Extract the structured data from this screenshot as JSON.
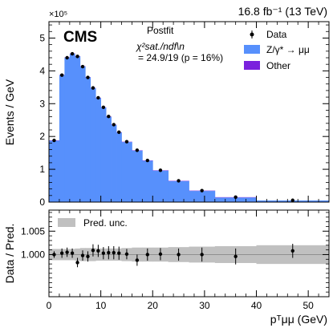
{
  "header": {
    "lumi_label": "16.8 fb⁻¹ (13 TeV)",
    "experiment": "CMS",
    "multiplier": "×10⁵"
  },
  "fit_info": {
    "line1": "Postfit",
    "line2": "χ²sat./ndf\\n",
    "line3": "= 24.9/19 (p = 16%)"
  },
  "legend": {
    "data": "Data",
    "signal": "Z/γ* → μμ",
    "other": "Other",
    "unc": "Pred. unc."
  },
  "colors": {
    "signal": "#5790fc",
    "other": "#7a21dd",
    "unc_band": "#c0c0c0",
    "data": "#000000"
  },
  "axes": {
    "top_ylabel": "Events / GeV",
    "bottom_ylabel": "Data / Pred.",
    "xlabel": "pᵀμμ (GeV)"
  },
  "chart_data": [
    {
      "type": "bar",
      "panel": "top",
      "xlim": [
        0,
        54
      ],
      "ylim": [
        0,
        5.5
      ],
      "y_scale_factor": "×10⁵",
      "yticks": [
        0,
        1,
        2,
        3,
        4,
        5
      ],
      "xticks": [
        0,
        10,
        20,
        30,
        40,
        50
      ],
      "bin_edges": [
        0,
        2,
        3,
        4,
        5,
        6,
        7,
        8,
        9,
        10,
        11,
        12,
        13,
        14,
        16,
        18,
        20,
        23,
        27,
        32,
        40,
        54
      ],
      "series": [
        {
          "name": "Z/γ* → μμ",
          "values": [
            1.87,
            3.87,
            4.4,
            4.52,
            4.44,
            4.13,
            3.8,
            3.47,
            3.17,
            2.88,
            2.6,
            2.35,
            2.12,
            1.83,
            1.57,
            1.26,
            0.96,
            0.64,
            0.34,
            0.14,
            0.05
          ]
        },
        {
          "name": "Other",
          "values": [
            0.01,
            0.01,
            0.01,
            0.01,
            0.01,
            0.01,
            0.01,
            0.01,
            0.01,
            0.01,
            0.01,
            0.01,
            0.01,
            0.01,
            0.01,
            0.01,
            0.01,
            0.01,
            0.01,
            0.01,
            0.0
          ]
        }
      ],
      "data_points": {
        "name": "Data",
        "x": [
          1.0,
          2.5,
          3.5,
          4.5,
          5.5,
          6.5,
          7.5,
          8.5,
          9.5,
          10.5,
          11.5,
          12.5,
          13.5,
          15.0,
          17.0,
          19.0,
          21.5,
          25.0,
          29.5,
          36.0,
          47.0
        ],
        "y": [
          1.88,
          3.87,
          4.4,
          4.52,
          4.44,
          4.13,
          3.8,
          3.48,
          3.18,
          2.89,
          2.61,
          2.36,
          2.13,
          1.84,
          1.58,
          1.27,
          0.97,
          0.65,
          0.35,
          0.15,
          0.055
        ]
      }
    },
    {
      "type": "scatter",
      "panel": "bottom",
      "xlim": [
        0,
        54
      ],
      "ylim": [
        0.991,
        1.0095
      ],
      "yticks": [
        1.0,
        1.005
      ],
      "ytick_labels": [
        "1.000",
        "1.005"
      ],
      "xticks": [
        0,
        10,
        20,
        30,
        40,
        50
      ],
      "reference_line": 1.0,
      "series": [
        {
          "name": "Data",
          "x": [
            1.0,
            2.5,
            3.5,
            4.5,
            5.5,
            6.5,
            7.5,
            8.5,
            9.5,
            10.5,
            11.5,
            12.5,
            13.5,
            15.0,
            17.0,
            19.0,
            21.5,
            25.0,
            29.5,
            36.0,
            47.0
          ],
          "y": [
            1.0,
            1.0003,
            1.0005,
            1.0003,
            0.9983,
            0.9998,
            0.9996,
            1.0009,
            1.0008,
            1.0003,
            1.0004,
            1.0004,
            1.0003,
            1.0001,
            0.9988,
            1.0,
            1.0001,
            1.0,
            1.0,
            0.9996,
            1.0008
          ],
          "err": [
            0.0007,
            0.001,
            0.001,
            0.001,
            0.001,
            0.0011,
            0.0011,
            0.0013,
            0.0013,
            0.0013,
            0.0014,
            0.0014,
            0.0014,
            0.0011,
            0.0012,
            0.0013,
            0.0013,
            0.0013,
            0.0015,
            0.0017,
            0.0015
          ]
        }
      ],
      "uncertainty_band": {
        "name": "Pred. unc.",
        "bin_edges": [
          0,
          2,
          3,
          4,
          5,
          6,
          7,
          8,
          9,
          10,
          11,
          12,
          13,
          14,
          16,
          18,
          20,
          23,
          27,
          32,
          40,
          54
        ],
        "half_width": [
          0.0012,
          0.0012,
          0.0012,
          0.0012,
          0.0013,
          0.0014,
          0.0014,
          0.0014,
          0.0013,
          0.0013,
          0.0013,
          0.0013,
          0.0013,
          0.0014,
          0.0015,
          0.0015,
          0.0015,
          0.0016,
          0.0017,
          0.0018,
          0.002
        ]
      }
    }
  ]
}
